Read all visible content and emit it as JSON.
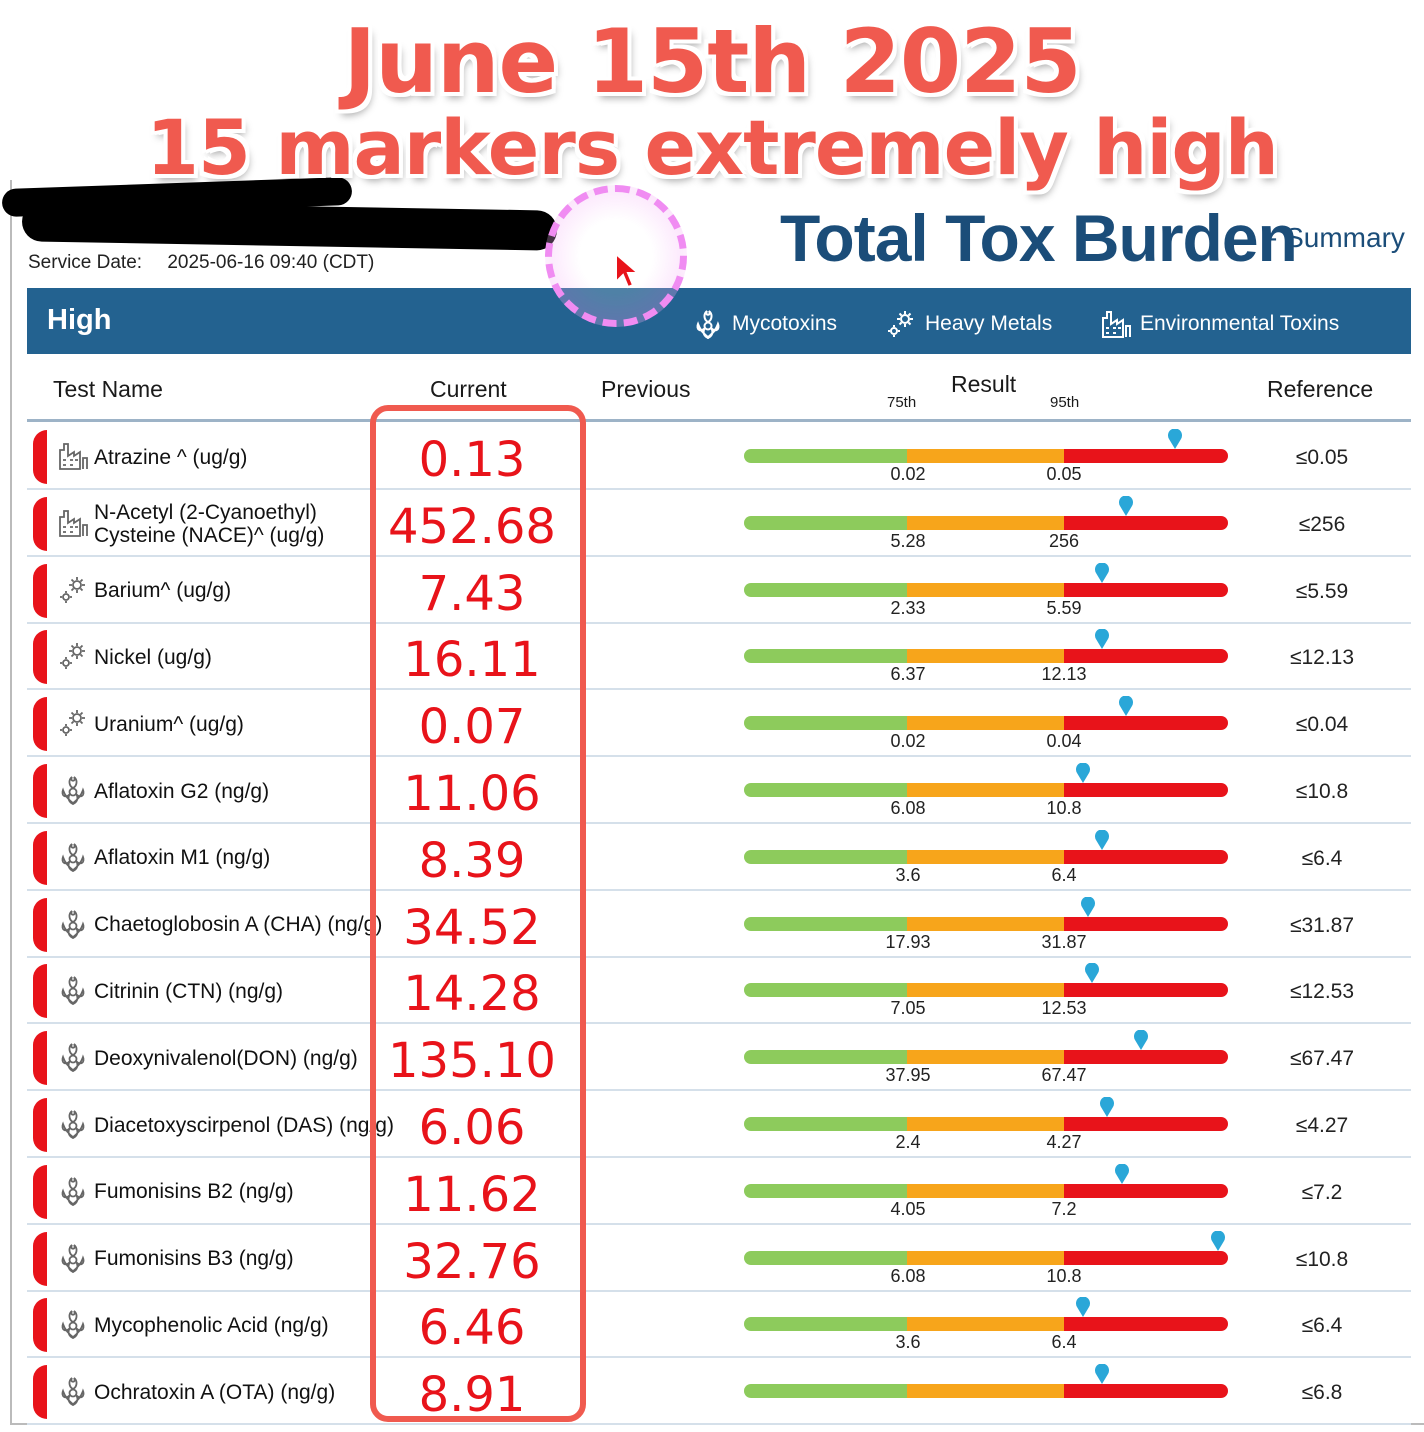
{
  "overlay": {
    "line1": "June 15th 2025",
    "line2": "15 markers extremely high"
  },
  "report": {
    "service_date_label": "Service Date:",
    "service_date_value": "2025-06-16 09:40 (CDT)",
    "brand_title": "Total Tox Burden",
    "brand_subtitle": "- Summary"
  },
  "band": {
    "label": "High",
    "categories": [
      {
        "icon": "biohazard-icon",
        "label": "Mycotoxins"
      },
      {
        "icon": "gear-icon",
        "label": "Heavy Metals"
      },
      {
        "icon": "factory-icon",
        "label": "Environmental Toxins"
      }
    ]
  },
  "columns": {
    "test_name": "Test Name",
    "current": "Current",
    "previous": "Previous",
    "result": "Result",
    "p75": "75th",
    "p95": "95th",
    "reference": "Reference"
  },
  "colors": {
    "high_flag": "#e8131a",
    "band": "#236290",
    "marker": "#2aa7d8",
    "normal": "#8dcb5c",
    "elevated": "#f7a51b",
    "high": "#e8131a"
  },
  "rows": [
    {
      "icon": "factory-icon",
      "name": "Atrazine ^ (ug/g)",
      "current": "0.13",
      "p75": "0.02",
      "p95": "0.05",
      "reference": "≤0.05",
      "marker_position": 0.89
    },
    {
      "icon": "factory-icon",
      "name": "N-Acetyl (2-Cyanoethyl) Cysteine (NACE)^ (ug/g)",
      "current": "452.68",
      "p75": "5.28",
      "p95": "256",
      "reference": "≤256",
      "marker_position": 0.79
    },
    {
      "icon": "gear-icon",
      "name": "Barium^ (ug/g)",
      "current": "7.43",
      "p75": "2.33",
      "p95": "5.59",
      "reference": "≤5.59",
      "marker_position": 0.74
    },
    {
      "icon": "gear-icon",
      "name": "Nickel (ug/g)",
      "current": "16.11",
      "p75": "6.37",
      "p95": "12.13",
      "reference": "≤12.13",
      "marker_position": 0.74
    },
    {
      "icon": "gear-icon",
      "name": "Uranium^ (ug/g)",
      "current": "0.07",
      "p75": "0.02",
      "p95": "0.04",
      "reference": "≤0.04",
      "marker_position": 0.79
    },
    {
      "icon": "biohazard-icon",
      "name": "Aflatoxin G2 (ng/g)",
      "current": "11.06",
      "p75": "6.08",
      "p95": "10.8",
      "reference": "≤10.8",
      "marker_position": 0.7
    },
    {
      "icon": "biohazard-icon",
      "name": "Aflatoxin M1 (ng/g)",
      "current": "8.39",
      "p75": "3.6",
      "p95": "6.4",
      "reference": "≤6.4",
      "marker_position": 0.74
    },
    {
      "icon": "biohazard-icon",
      "name": "Chaetoglobosin A (CHA) (ng/g)",
      "current": "34.52",
      "p75": "17.93",
      "p95": "31.87",
      "reference": "≤31.87",
      "marker_position": 0.71
    },
    {
      "icon": "biohazard-icon",
      "name": "Citrinin (CTN) (ng/g)",
      "current": "14.28",
      "p75": "7.05",
      "p95": "12.53",
      "reference": "≤12.53",
      "marker_position": 0.72
    },
    {
      "icon": "biohazard-icon",
      "name": "Deoxynivalenol(DON) (ng/g)",
      "current": "135.10",
      "p75": "37.95",
      "p95": "67.47",
      "reference": "≤67.47",
      "marker_position": 0.82
    },
    {
      "icon": "biohazard-icon",
      "name": "Diacetoxyscirpenol (DAS) (ng/g)",
      "current": "6.06",
      "p75": "2.4",
      "p95": "4.27",
      "reference": "≤4.27",
      "marker_position": 0.75
    },
    {
      "icon": "biohazard-icon",
      "name": "Fumonisins B2 (ng/g)",
      "current": "11.62",
      "p75": "4.05",
      "p95": "7.2",
      "reference": "≤7.2",
      "marker_position": 0.78
    },
    {
      "icon": "biohazard-icon",
      "name": "Fumonisins B3 (ng/g)",
      "current": "32.76",
      "p75": "6.08",
      "p95": "10.8",
      "reference": "≤10.8",
      "marker_position": 0.98
    },
    {
      "icon": "biohazard-icon",
      "name": "Mycophenolic Acid (ng/g)",
      "current": "6.46",
      "p75": "3.6",
      "p95": "6.4",
      "reference": "≤6.4",
      "marker_position": 0.7
    },
    {
      "icon": "biohazard-icon",
      "name": "Ochratoxin A (OTA) (ng/g)",
      "current": "8.91",
      "p75": "",
      "p95": "",
      "reference": "≤6.8",
      "marker_position": 0.74
    }
  ]
}
